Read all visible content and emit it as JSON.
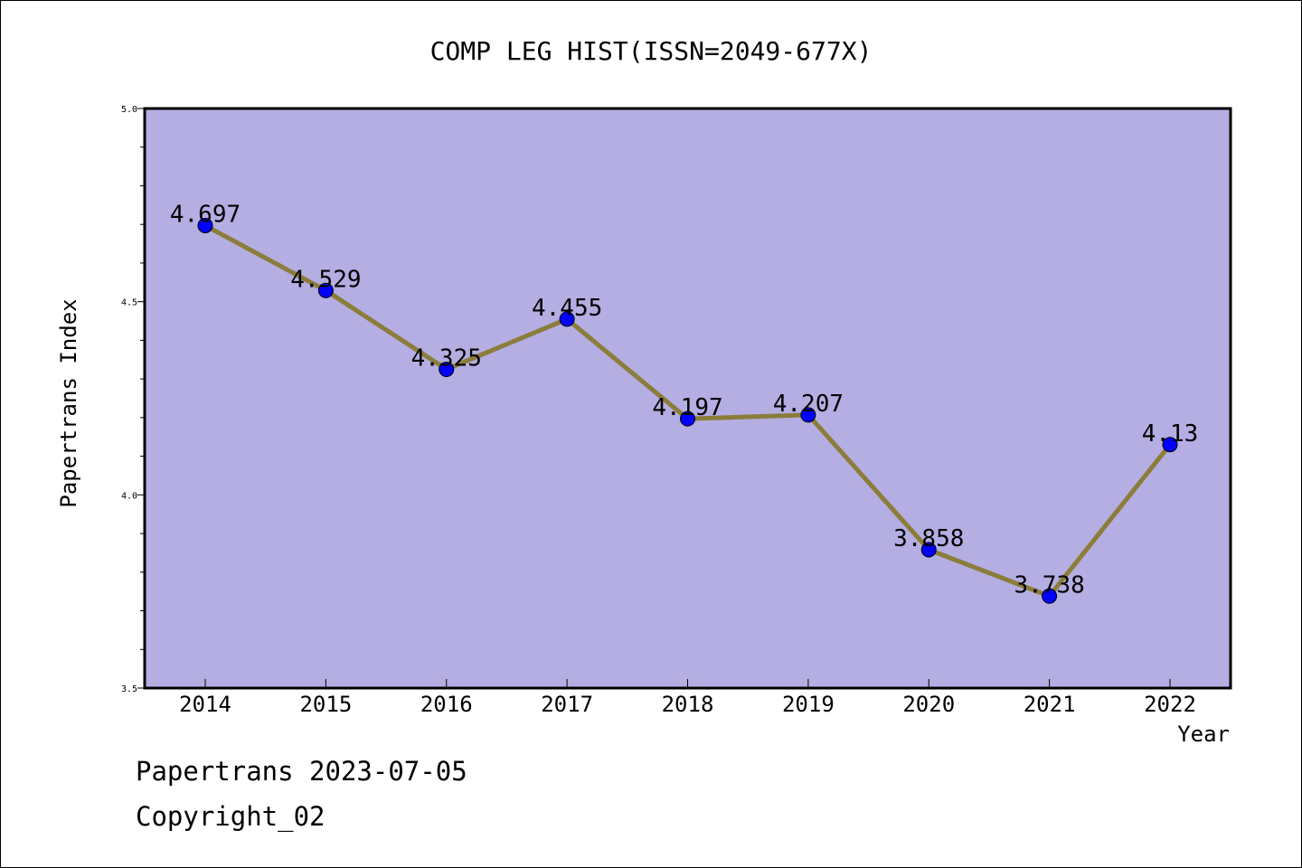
{
  "chart_data": {
    "type": "line",
    "title": "COMP LEG HIST(ISSN=2049-677X)",
    "xlabel": "Year",
    "ylabel": "Papertrans Index",
    "categories": [
      "2014",
      "2015",
      "2016",
      "2017",
      "2018",
      "2019",
      "2020",
      "2021",
      "2022"
    ],
    "values": [
      4.697,
      4.529,
      4.325,
      4.455,
      4.197,
      4.207,
      3.858,
      3.738,
      4.13
    ],
    "value_labels": [
      "4.697",
      "4.529",
      "4.325",
      "4.455",
      "4.197",
      "4.207",
      "3.858",
      "3.738",
      "4.13"
    ],
    "ylim": [
      3.5,
      5.0
    ],
    "yticks": [
      "3.5",
      "4.0",
      "4.5",
      "5.0"
    ],
    "grid": false,
    "colors": {
      "plot_background": "#b4aee2",
      "line": "#8b7d3a",
      "marker": "#0000ff"
    }
  },
  "footer": {
    "line1": "Papertrans 2023-07-05",
    "line2": "Copyright_02"
  }
}
